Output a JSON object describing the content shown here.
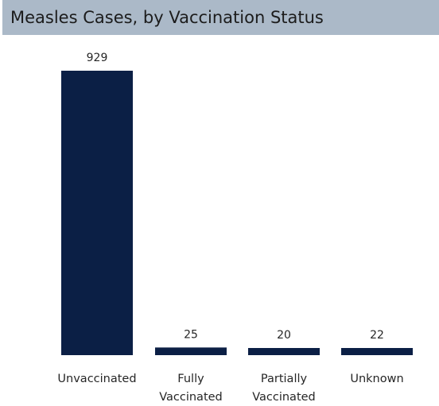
{
  "chart_data": {
    "type": "bar",
    "title": "Measles Cases, by Vaccination Status",
    "categories": [
      [
        "Unvaccinated"
      ],
      [
        "Fully",
        "Vaccinated"
      ],
      [
        "Partially",
        "Vaccinated"
      ],
      [
        "Unknown"
      ]
    ],
    "values": [
      929,
      25,
      20,
      22
    ],
    "value_labels": [
      "929",
      "25",
      "20",
      "22"
    ],
    "xlabel": "",
    "ylabel": "",
    "ylim": [
      0,
      929
    ],
    "grid": false,
    "legend": "none",
    "colors": {
      "bar": "#0b1f45",
      "title_background": "#abb9c8",
      "text": "#262626"
    }
  }
}
